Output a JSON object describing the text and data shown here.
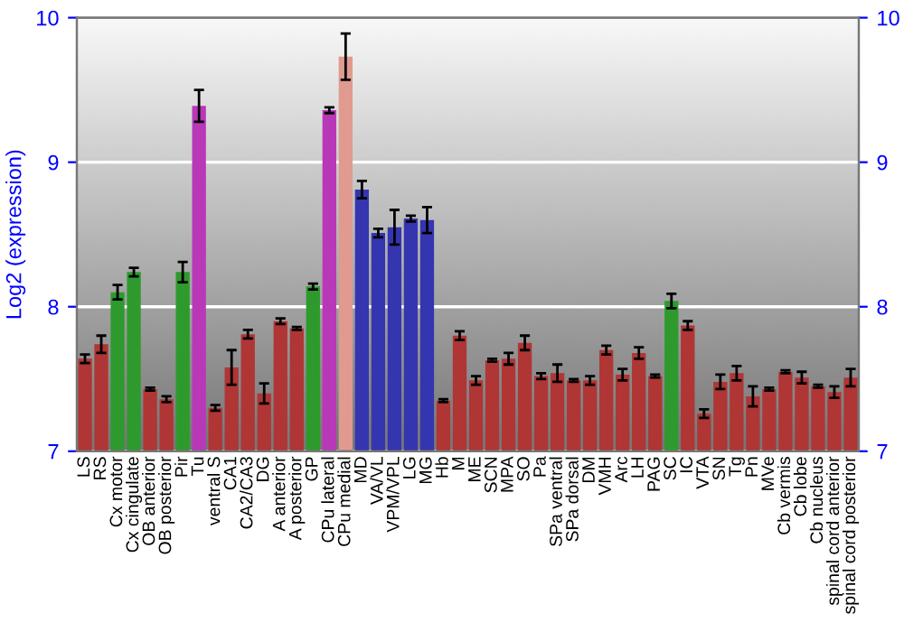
{
  "chart_data": {
    "type": "bar",
    "ylabel": "Log2 (expression)",
    "categories": [
      "LS",
      "RS",
      "Cx motor",
      "Cx cingulate",
      "OB anterior",
      "OB posterior",
      "Pir",
      "Tu",
      "ventral S",
      "CA1",
      "CA2/CA3",
      "DG",
      "A anterior",
      "A posterior",
      "GP",
      "CPu lateral",
      "CPu medial",
      "MD",
      "VA/VL",
      "VPM/VPL",
      "LG",
      "MG",
      "Hb",
      "M",
      "ME",
      "SCN",
      "MPA",
      "SO",
      "Pa",
      "SPa ventral",
      "SPa dorsal",
      "DM",
      "VMH",
      "Arc",
      "LH",
      "PAG",
      "SC",
      "IC",
      "VTA",
      "SN",
      "Tg",
      "Pn",
      "MVe",
      "Cb vermis",
      "Cb lobe",
      "Cb nucleus",
      "spinal cord anterior",
      "spinal cord posterior"
    ],
    "values": [
      7.64,
      7.74,
      8.1,
      8.24,
      7.43,
      7.36,
      8.24,
      9.39,
      7.3,
      7.58,
      7.81,
      7.4,
      7.9,
      7.85,
      8.14,
      9.36,
      9.73,
      8.81,
      8.51,
      8.55,
      8.61,
      8.6,
      7.35,
      7.8,
      7.49,
      7.63,
      7.64,
      7.75,
      7.52,
      7.54,
      7.49,
      7.49,
      7.7,
      7.53,
      7.68,
      7.52,
      8.04,
      7.87,
      7.26,
      7.48,
      7.54,
      7.38,
      7.43,
      7.55,
      7.51,
      7.45,
      7.41,
      7.51
    ],
    "errors": [
      0.03,
      0.06,
      0.05,
      0.03,
      0.01,
      0.02,
      0.07,
      0.11,
      0.02,
      0.12,
      0.03,
      0.07,
      0.02,
      0.01,
      0.02,
      0.02,
      0.16,
      0.06,
      0.03,
      0.12,
      0.02,
      0.09,
      0.01,
      0.03,
      0.03,
      0.01,
      0.04,
      0.05,
      0.02,
      0.06,
      0.01,
      0.03,
      0.03,
      0.04,
      0.04,
      0.01,
      0.05,
      0.03,
      0.03,
      0.05,
      0.05,
      0.07,
      0.01,
      0.01,
      0.04,
      0.01,
      0.04,
      0.06
    ],
    "colors": [
      "#b03535",
      "#b03535",
      "#2e9a2e",
      "#2e9a2e",
      "#b03535",
      "#b03535",
      "#2e9a2e",
      "#b838b8",
      "#b03535",
      "#b03535",
      "#b03535",
      "#b03535",
      "#b03535",
      "#b03535",
      "#2e9a2e",
      "#b838b8",
      "#e09a90",
      "#3535b0",
      "#3535b0",
      "#3535b0",
      "#3535b0",
      "#3535b0",
      "#b03535",
      "#b03535",
      "#b03535",
      "#b03535",
      "#b03535",
      "#b03535",
      "#b03535",
      "#b03535",
      "#b03535",
      "#b03535",
      "#b03535",
      "#b03535",
      "#b03535",
      "#b03535",
      "#2e9a2e",
      "#b03535",
      "#b03535",
      "#b03535",
      "#b03535",
      "#b03535",
      "#b03535",
      "#b03535",
      "#b03535",
      "#b03535",
      "#b03535",
      "#b03535"
    ],
    "ylim": [
      7,
      10
    ],
    "yticks": [
      7,
      8,
      9,
      10
    ],
    "y2lim": [
      7,
      10
    ],
    "y2ticks": [
      7,
      8,
      9,
      10
    ],
    "grid": "y"
  }
}
